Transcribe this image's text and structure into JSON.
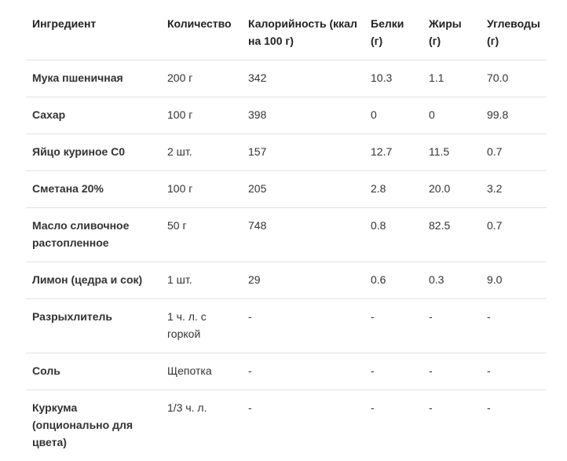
{
  "table": {
    "headers": [
      "Ингредиент",
      "Количество",
      "Калорийность (ккал на 100 г)",
      "Белки (г)",
      "Жиры (г)",
      "Углеводы (г)"
    ],
    "rows": [
      [
        "Мука пшеничная",
        "200 г",
        "342",
        "10.3",
        "1.1",
        "70.0"
      ],
      [
        "Сахар",
        "100 г",
        "398",
        "0",
        "0",
        "99.8"
      ],
      [
        "Яйцо куриное С0",
        "2 шт.",
        "157",
        "12.7",
        "11.5",
        "0.7"
      ],
      [
        "Сметана 20%",
        "100 г",
        "205",
        "2.8",
        "20.0",
        "3.2"
      ],
      [
        "Масло сливочное растопленное",
        "50 г",
        "748",
        "0.8",
        "82.5",
        "0.7"
      ],
      [
        "Лимон (цедра и сок)",
        "1 шт.",
        "29",
        "0.6",
        "0.3",
        "9.0"
      ],
      [
        "Разрыхлитель",
        "1 ч. л. с горкой",
        "-",
        "-",
        "-",
        "-"
      ],
      [
        "Соль",
        "Щепотка",
        "-",
        "-",
        "-",
        "-"
      ],
      [
        "Куркума (опционально для цвета)",
        "1/3 ч. л.",
        "-",
        "-",
        "-",
        "-"
      ]
    ]
  }
}
